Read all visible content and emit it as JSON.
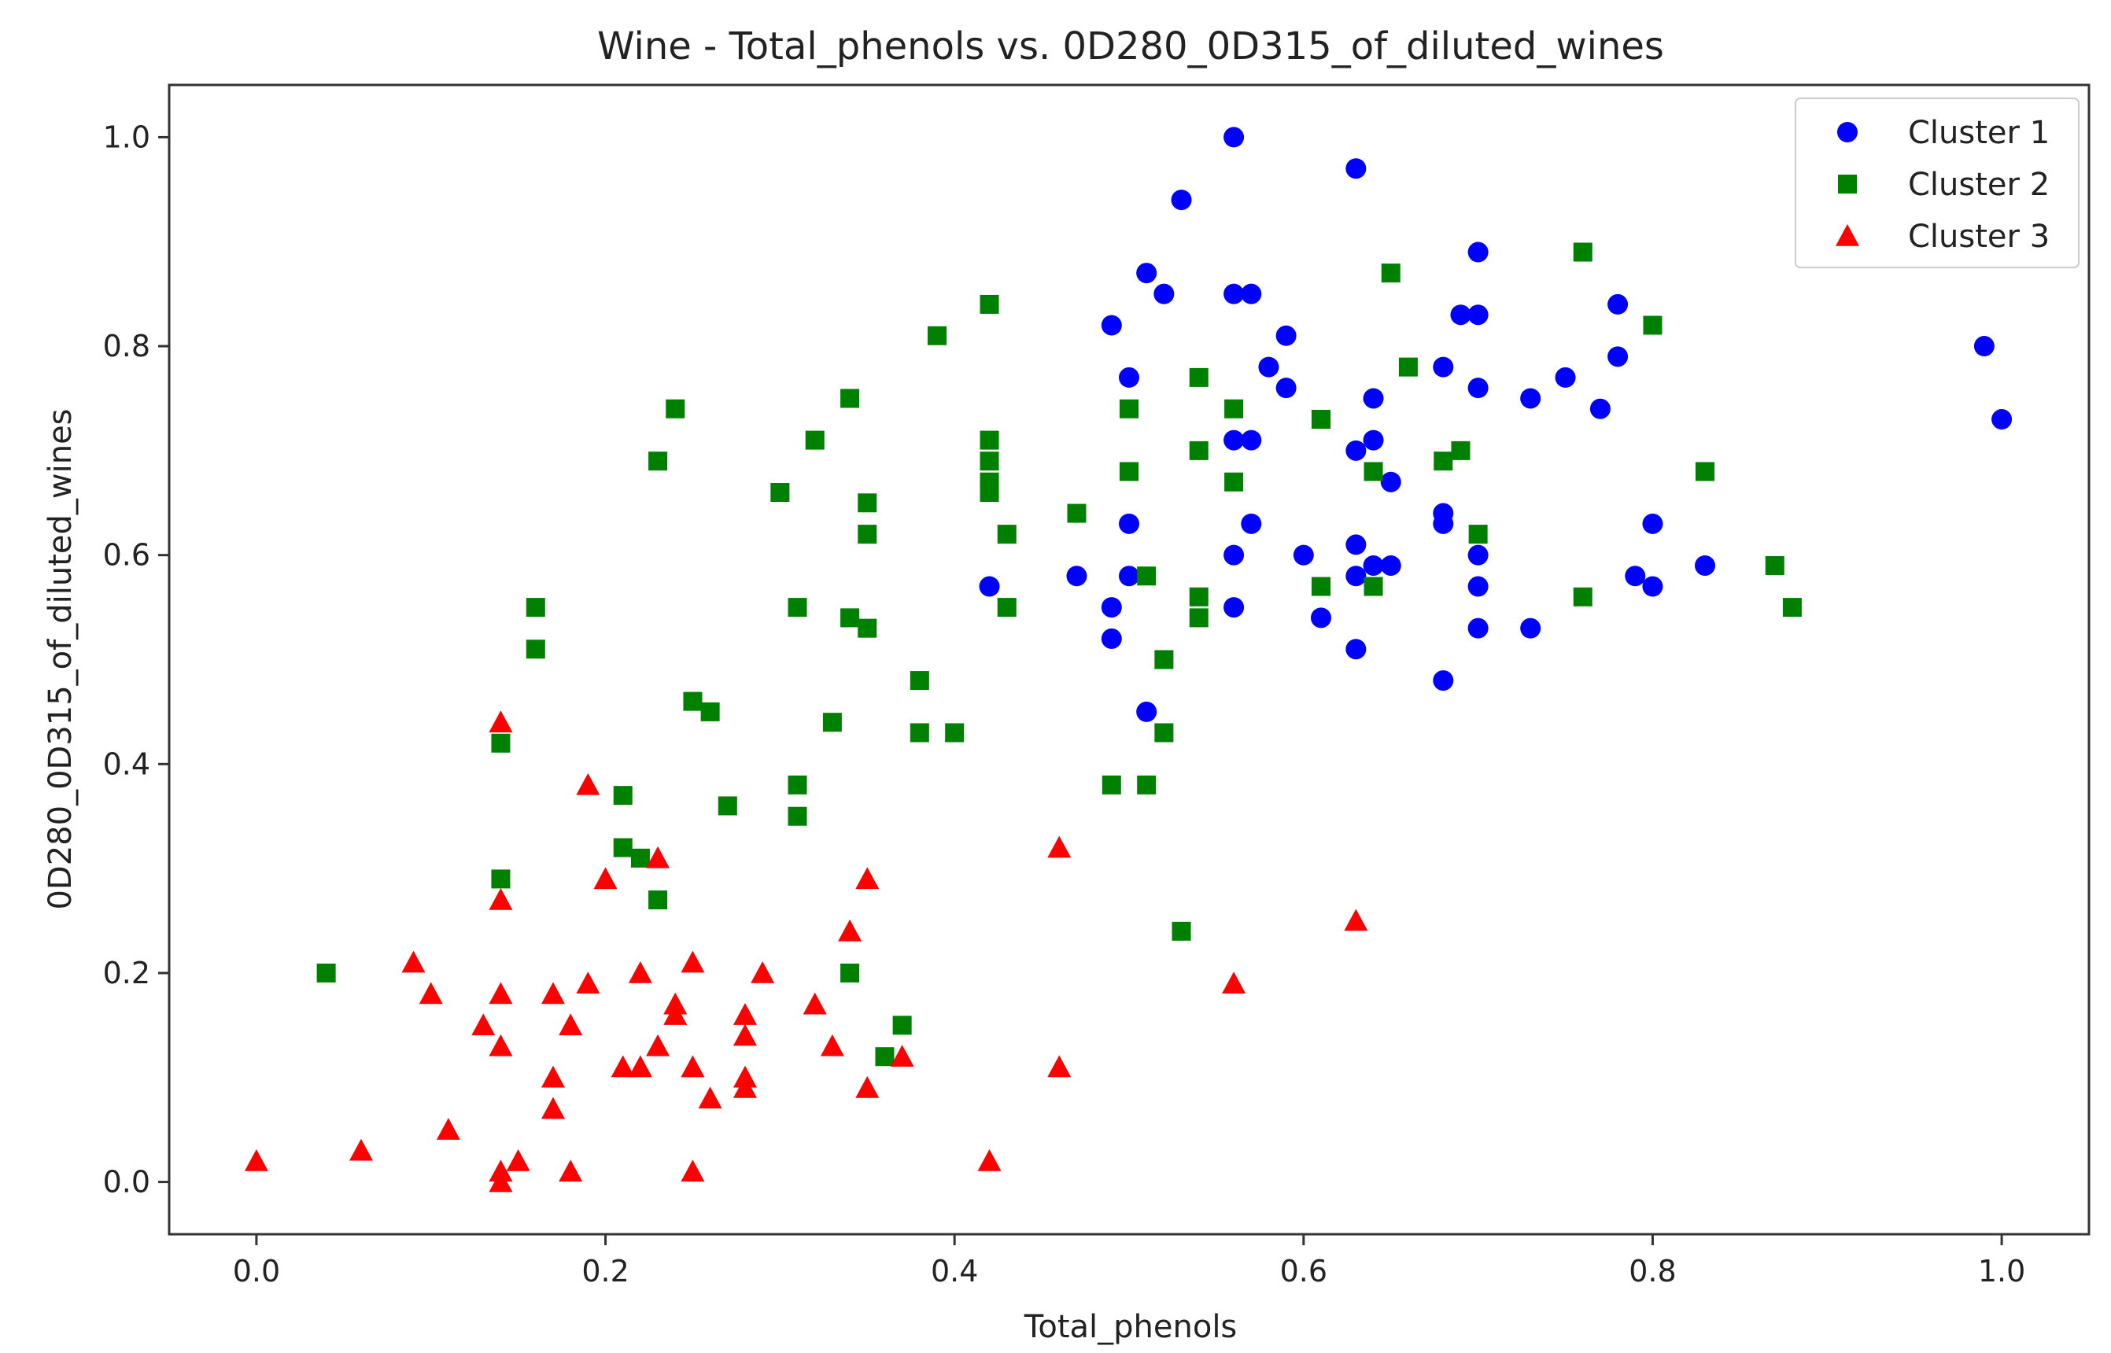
{
  "chart_data": {
    "type": "scatter",
    "title": "Wine - Total_phenols vs. 0D280_0D315_of_diluted_wines",
    "xlabel": "Total_phenols",
    "ylabel": "0D280_0D315_of_diluted_wines",
    "xlim": [
      -0.05,
      1.05
    ],
    "ylim": [
      -0.05,
      1.05
    ],
    "xticks": [
      0.0,
      0.2,
      0.4,
      0.6,
      0.8,
      1.0
    ],
    "xtick_labels": [
      "0.0",
      "0.2",
      "0.4",
      "0.6",
      "0.8",
      "1.0"
    ],
    "yticks": [
      0.0,
      0.2,
      0.4,
      0.6,
      0.8,
      1.0
    ],
    "ytick_labels": [
      "0.0",
      "0.2",
      "0.4",
      "0.6",
      "0.8",
      "1.0"
    ],
    "grid": false,
    "legend_position": "top-right",
    "series": [
      {
        "name": "Cluster 1",
        "marker": "circle",
        "color": "#0000ff",
        "points": [
          [
            0.56,
            1.0
          ],
          [
            0.63,
            0.97
          ],
          [
            0.53,
            0.94
          ],
          [
            0.7,
            0.89
          ],
          [
            0.51,
            0.87
          ],
          [
            0.52,
            0.85
          ],
          [
            0.56,
            0.85
          ],
          [
            0.57,
            0.85
          ],
          [
            0.78,
            0.84
          ],
          [
            0.69,
            0.83
          ],
          [
            0.7,
            0.83
          ],
          [
            0.49,
            0.82
          ],
          [
            0.59,
            0.81
          ],
          [
            0.99,
            0.8
          ],
          [
            0.78,
            0.79
          ],
          [
            0.58,
            0.78
          ],
          [
            0.68,
            0.78
          ],
          [
            0.5,
            0.77
          ],
          [
            0.59,
            0.76
          ],
          [
            0.7,
            0.76
          ],
          [
            0.75,
            0.77
          ],
          [
            0.64,
            0.75
          ],
          [
            0.73,
            0.75
          ],
          [
            0.77,
            0.74
          ],
          [
            1.0,
            0.73
          ],
          [
            0.64,
            0.71
          ],
          [
            0.56,
            0.71
          ],
          [
            0.57,
            0.71
          ],
          [
            0.63,
            0.7
          ],
          [
            0.65,
            0.67
          ],
          [
            0.5,
            0.63
          ],
          [
            0.57,
            0.63
          ],
          [
            0.68,
            0.63
          ],
          [
            0.68,
            0.64
          ],
          [
            0.8,
            0.63
          ],
          [
            0.56,
            0.6
          ],
          [
            0.6,
            0.6
          ],
          [
            0.7,
            0.6
          ],
          [
            0.63,
            0.61
          ],
          [
            0.47,
            0.58
          ],
          [
            0.5,
            0.58
          ],
          [
            0.64,
            0.59
          ],
          [
            0.65,
            0.59
          ],
          [
            0.63,
            0.58
          ],
          [
            0.7,
            0.57
          ],
          [
            0.79,
            0.58
          ],
          [
            0.8,
            0.57
          ],
          [
            0.83,
            0.59
          ],
          [
            0.42,
            0.57
          ],
          [
            0.49,
            0.55
          ],
          [
            0.56,
            0.55
          ],
          [
            0.61,
            0.54
          ],
          [
            0.73,
            0.53
          ],
          [
            0.7,
            0.53
          ],
          [
            0.49,
            0.52
          ],
          [
            0.63,
            0.51
          ],
          [
            0.68,
            0.48
          ],
          [
            0.51,
            0.45
          ]
        ]
      },
      {
        "name": "Cluster 2",
        "marker": "square",
        "color": "#008000",
        "points": [
          [
            0.76,
            0.89
          ],
          [
            0.65,
            0.87
          ],
          [
            0.42,
            0.84
          ],
          [
            0.39,
            0.81
          ],
          [
            0.8,
            0.82
          ],
          [
            0.54,
            0.77
          ],
          [
            0.66,
            0.78
          ],
          [
            0.34,
            0.75
          ],
          [
            0.24,
            0.74
          ],
          [
            0.5,
            0.74
          ],
          [
            0.56,
            0.74
          ],
          [
            0.61,
            0.73
          ],
          [
            0.42,
            0.71
          ],
          [
            0.32,
            0.71
          ],
          [
            0.42,
            0.69
          ],
          [
            0.54,
            0.7
          ],
          [
            0.23,
            0.69
          ],
          [
            0.42,
            0.67
          ],
          [
            0.68,
            0.69
          ],
          [
            0.69,
            0.7
          ],
          [
            0.5,
            0.68
          ],
          [
            0.64,
            0.68
          ],
          [
            0.83,
            0.68
          ],
          [
            0.56,
            0.67
          ],
          [
            0.42,
            0.66
          ],
          [
            0.3,
            0.66
          ],
          [
            0.35,
            0.65
          ],
          [
            0.47,
            0.64
          ],
          [
            0.43,
            0.62
          ],
          [
            0.35,
            0.62
          ],
          [
            0.7,
            0.62
          ],
          [
            0.51,
            0.58
          ],
          [
            0.87,
            0.59
          ],
          [
            0.61,
            0.57
          ],
          [
            0.64,
            0.57
          ],
          [
            0.76,
            0.56
          ],
          [
            0.16,
            0.55
          ],
          [
            0.31,
            0.55
          ],
          [
            0.43,
            0.55
          ],
          [
            0.54,
            0.56
          ],
          [
            0.88,
            0.55
          ],
          [
            0.34,
            0.54
          ],
          [
            0.54,
            0.54
          ],
          [
            0.35,
            0.53
          ],
          [
            0.16,
            0.51
          ],
          [
            0.52,
            0.5
          ],
          [
            0.38,
            0.48
          ],
          [
            0.25,
            0.46
          ],
          [
            0.26,
            0.45
          ],
          [
            0.33,
            0.44
          ],
          [
            0.38,
            0.43
          ],
          [
            0.4,
            0.43
          ],
          [
            0.52,
            0.43
          ],
          [
            0.14,
            0.42
          ],
          [
            0.31,
            0.38
          ],
          [
            0.49,
            0.38
          ],
          [
            0.51,
            0.38
          ],
          [
            0.21,
            0.37
          ],
          [
            0.27,
            0.36
          ],
          [
            0.31,
            0.35
          ],
          [
            0.21,
            0.32
          ],
          [
            0.22,
            0.31
          ],
          [
            0.14,
            0.29
          ],
          [
            0.23,
            0.27
          ],
          [
            0.53,
            0.24
          ],
          [
            0.04,
            0.2
          ],
          [
            0.34,
            0.2
          ],
          [
            0.37,
            0.15
          ],
          [
            0.36,
            0.12
          ]
        ]
      },
      {
        "name": "Cluster 3",
        "marker": "triangle",
        "color": "#ff0000",
        "points": [
          [
            0.14,
            0.44
          ],
          [
            0.19,
            0.38
          ],
          [
            0.46,
            0.32
          ],
          [
            0.23,
            0.31
          ],
          [
            0.2,
            0.29
          ],
          [
            0.35,
            0.29
          ],
          [
            0.14,
            0.27
          ],
          [
            0.63,
            0.25
          ],
          [
            0.34,
            0.24
          ],
          [
            0.25,
            0.21
          ],
          [
            0.09,
            0.21
          ],
          [
            0.22,
            0.2
          ],
          [
            0.29,
            0.2
          ],
          [
            0.19,
            0.19
          ],
          [
            0.56,
            0.19
          ],
          [
            0.1,
            0.18
          ],
          [
            0.14,
            0.18
          ],
          [
            0.17,
            0.18
          ],
          [
            0.24,
            0.17
          ],
          [
            0.32,
            0.17
          ],
          [
            0.24,
            0.16
          ],
          [
            0.28,
            0.16
          ],
          [
            0.13,
            0.15
          ],
          [
            0.18,
            0.15
          ],
          [
            0.28,
            0.14
          ],
          [
            0.14,
            0.13
          ],
          [
            0.23,
            0.13
          ],
          [
            0.33,
            0.13
          ],
          [
            0.37,
            0.12
          ],
          [
            0.22,
            0.11
          ],
          [
            0.46,
            0.11
          ],
          [
            0.21,
            0.11
          ],
          [
            0.25,
            0.11
          ],
          [
            0.28,
            0.1
          ],
          [
            0.17,
            0.1
          ],
          [
            0.28,
            0.09
          ],
          [
            0.35,
            0.09
          ],
          [
            0.26,
            0.08
          ],
          [
            0.17,
            0.07
          ],
          [
            0.11,
            0.05
          ],
          [
            0.06,
            0.03
          ],
          [
            0.0,
            0.02
          ],
          [
            0.42,
            0.02
          ],
          [
            0.15,
            0.02
          ],
          [
            0.14,
            0.01
          ],
          [
            0.18,
            0.01
          ],
          [
            0.25,
            0.01
          ],
          [
            0.14,
            0.0
          ]
        ]
      }
    ]
  }
}
